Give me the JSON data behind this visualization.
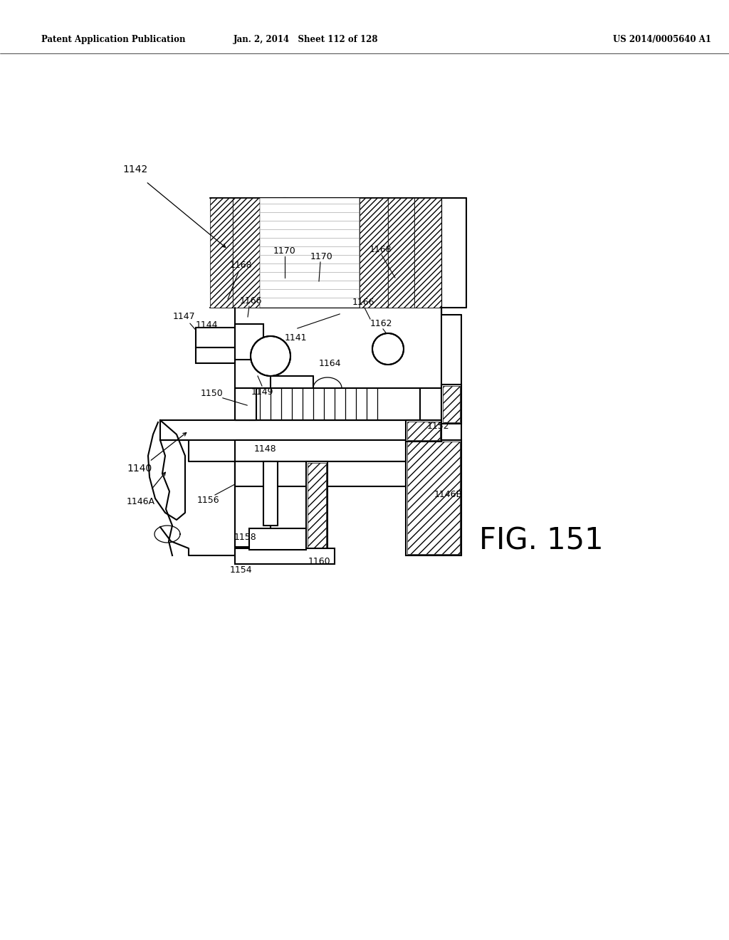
{
  "header_left": "Patent Application Publication",
  "header_center": "Jan. 2, 2014   Sheet 112 of 128",
  "header_right": "US 2014/0005640 A1",
  "fig_label": "FIG. 151",
  "background_color": "#ffffff"
}
